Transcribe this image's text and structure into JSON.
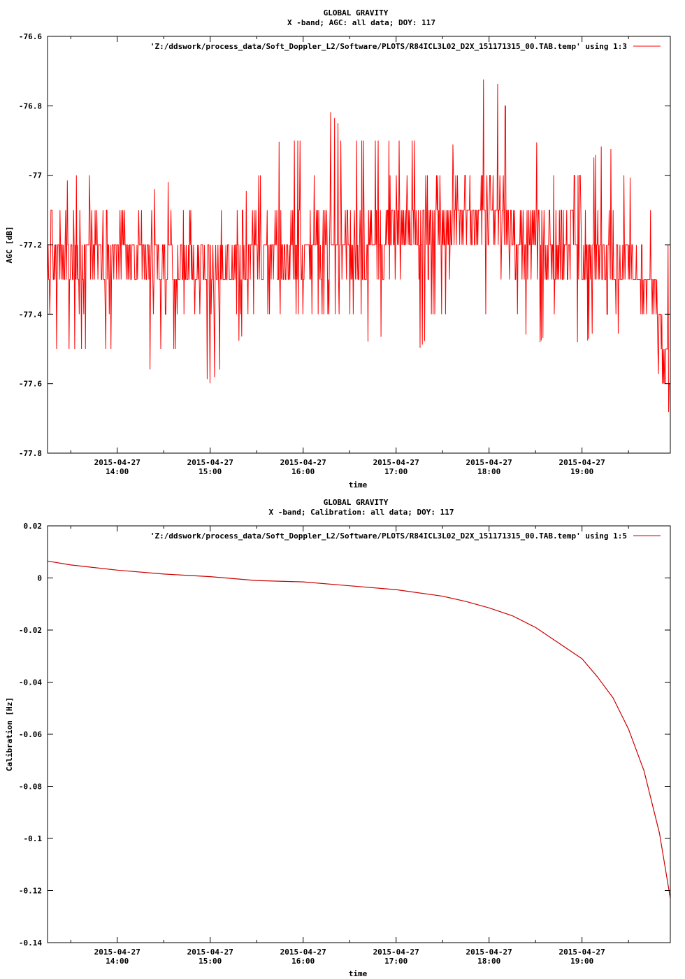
{
  "chart_data": [
    {
      "type": "line",
      "title": "GLOBAL GRAVITY",
      "subtitle": "X -band; AGC: all data; DOY: 117",
      "xlabel": "time",
      "ylabel": "AGC [dB]",
      "ylim": [
        -77.8,
        -76.6
      ],
      "yticks": [
        -76.6,
        -76.8,
        -77,
        -77.2,
        -77.4,
        -77.6,
        -77.8
      ],
      "ytick_labels": [
        "-76.6",
        "-76.8",
        "-77",
        "-77.2",
        "-77.4",
        "-77.6",
        "-77.8"
      ],
      "xlim": [
        "2015-04-27 13:15",
        "2015-04-27 19:57"
      ],
      "xticks": [
        "2015-04-27 14:00",
        "2015-04-27 15:00",
        "2015-04-27 16:00",
        "2015-04-27 17:00",
        "2015-04-27 18:00",
        "2015-04-27 19:00"
      ],
      "xtick_date_labels": [
        "2015-04-27",
        "2015-04-27",
        "2015-04-27",
        "2015-04-27",
        "2015-04-27",
        "2015-04-27"
      ],
      "xtick_time_labels": [
        "14:00",
        "15:00",
        "16:00",
        "17:00",
        "18:00",
        "19:00"
      ],
      "legend_position": "top-right",
      "grid": false,
      "series": [
        {
          "name": "'Z:/ddswork/process_data/Soft_Doppler_L2/Software/PLOTS/R84ICL3L02_D2X_151171315_00.TAB.temp' using 1:3",
          "color": "#ff0000",
          "x": [
            "13:15",
            "13:30",
            "13:45",
            "14:00",
            "14:15",
            "14:30",
            "14:45",
            "15:00",
            "15:15",
            "15:30",
            "15:45",
            "16:00",
            "16:15",
            "16:30",
            "16:45",
            "17:00",
            "17:15",
            "17:30",
            "17:45",
            "18:00",
            "18:15",
            "18:30",
            "18:45",
            "19:00",
            "19:15",
            "19:30",
            "19:45",
            "19:57"
          ],
          "values": [
            -77.25,
            -77.25,
            -77.22,
            -77.22,
            -77.25,
            -77.27,
            -77.27,
            -77.28,
            -77.27,
            -77.22,
            -77.22,
            -77.2,
            -77.18,
            -77.2,
            -77.2,
            -77.18,
            -77.17,
            -77.13,
            -77.12,
            -77.12,
            -77.15,
            -77.2,
            -77.2,
            -77.22,
            -77.25,
            -77.27,
            -77.32,
            -77.6
          ],
          "min_values": [
            -77.5,
            -77.5,
            -77.5,
            -77.5,
            -77.6,
            -77.5,
            -77.5,
            -77.6,
            -77.5,
            -77.4,
            -77.4,
            -77.4,
            -77.4,
            -77.4,
            -77.5,
            -77.4,
            -77.5,
            -77.4,
            -77.4,
            -77.4,
            -77.4,
            -77.5,
            -77.4,
            -77.5,
            -77.4,
            -77.5,
            -77.5,
            -77.7
          ],
          "max_values": [
            -77.1,
            -77.0,
            -77.0,
            -77.1,
            -77.1,
            -77.0,
            -77.1,
            -77.1,
            -77.1,
            -77.0,
            -76.9,
            -76.9,
            -76.8,
            -76.9,
            -76.9,
            -76.9,
            -76.9,
            -77.0,
            -76.8,
            -76.7,
            -76.8,
            -76.9,
            -77.0,
            -77.0,
            -76.9,
            -77.0,
            -77.1,
            -77.2
          ]
        }
      ]
    },
    {
      "type": "line",
      "title": "GLOBAL GRAVITY",
      "subtitle": "X -band; Calibration: all data; DOY: 117",
      "xlabel": "time",
      "ylabel": "Calibration [Hz]",
      "ylim": [
        -0.14,
        0.02
      ],
      "yticks": [
        0.02,
        0,
        -0.02,
        -0.04,
        -0.06,
        -0.08,
        -0.1,
        -0.12,
        -0.14
      ],
      "ytick_labels": [
        "0.02",
        "0",
        "-0.02",
        "-0.04",
        "-0.06",
        "-0.08",
        "-0.1",
        "-0.12",
        "-0.14"
      ],
      "xlim": [
        "2015-04-27 13:15",
        "2015-04-27 19:57"
      ],
      "xticks": [
        "2015-04-27 14:00",
        "2015-04-27 15:00",
        "2015-04-27 16:00",
        "2015-04-27 17:00",
        "2015-04-27 18:00",
        "2015-04-27 19:00"
      ],
      "xtick_date_labels": [
        "2015-04-27",
        "2015-04-27",
        "2015-04-27",
        "2015-04-27",
        "2015-04-27",
        "2015-04-27"
      ],
      "xtick_time_labels": [
        "14:00",
        "15:00",
        "16:00",
        "17:00",
        "18:00",
        "19:00"
      ],
      "legend_position": "top-right",
      "grid": false,
      "series": [
        {
          "name": "'Z:/ddswork/process_data/Soft_Doppler_L2/Software/PLOTS/R84ICL3L02_D2X_151171315_00.TAB.temp' using 1:5",
          "color": "#cc0000",
          "x": [
            "13:15",
            "13:30",
            "14:00",
            "14:30",
            "15:00",
            "15:30",
            "16:00",
            "16:30",
            "17:00",
            "17:30",
            "17:45",
            "18:00",
            "18:15",
            "18:30",
            "18:45",
            "19:00",
            "19:10",
            "19:20",
            "19:30",
            "19:40",
            "19:50",
            "19:57"
          ],
          "values": [
            0.0065,
            0.005,
            0.003,
            0.0015,
            0.0005,
            -0.001,
            -0.0015,
            -0.003,
            -0.0045,
            -0.007,
            -0.009,
            -0.0115,
            -0.0145,
            -0.019,
            -0.025,
            -0.031,
            -0.038,
            -0.046,
            -0.058,
            -0.074,
            -0.098,
            -0.123
          ]
        }
      ]
    }
  ]
}
